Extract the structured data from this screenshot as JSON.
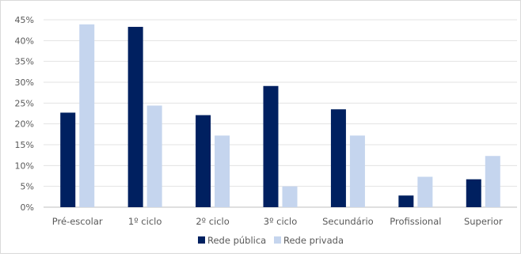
{
  "chart_data": {
    "type": "bar",
    "categories": [
      "Pré-escolar",
      "1º ciclo",
      "2º ciclo",
      "3º ciclo",
      "Secundário",
      "Profissional",
      "Superior"
    ],
    "series": [
      {
        "name": "Rede pública",
        "color": "#002060",
        "values": [
          22.7,
          43.3,
          22.1,
          29.1,
          23.5,
          2.8,
          6.7
        ]
      },
      {
        "name": "Rede privada",
        "color": "#C5D5EE",
        "values": [
          43.9,
          24.4,
          17.2,
          5.0,
          17.2,
          7.3,
          12.3
        ]
      }
    ],
    "title": "",
    "xlabel": "",
    "ylabel": "",
    "ylim": [
      0,
      45
    ],
    "yticks": [
      "0%",
      "5%",
      "10%",
      "15%",
      "20%",
      "25%",
      "30%",
      "35%",
      "40%",
      "45%"
    ],
    "grid": true,
    "legend": "bottom"
  }
}
